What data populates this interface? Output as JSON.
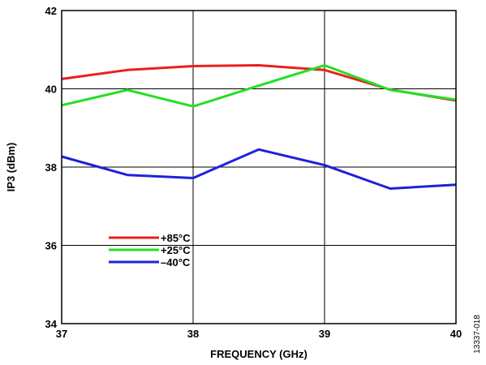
{
  "figure_id": "13337-018",
  "chart_data": {
    "type": "line",
    "title": "",
    "xlabel": "FREQUENCY (GHz)",
    "ylabel": "IP3 (dBm)",
    "xlim": [
      37,
      40
    ],
    "ylim": [
      34,
      42
    ],
    "x_ticks": [
      37,
      38,
      39,
      40
    ],
    "y_ticks": [
      34,
      36,
      38,
      40,
      42
    ],
    "grid": true,
    "legend_position": "lower-left",
    "series": [
      {
        "name": "+85°C",
        "color": "#e8201e",
        "x": [
          37,
          37.5,
          38,
          38.5,
          39,
          39.5,
          40
        ],
        "y": [
          40.25,
          40.48,
          40.58,
          40.6,
          40.48,
          39.98,
          39.7
        ]
      },
      {
        "name": "+25°C",
        "color": "#22e022",
        "x": [
          37,
          37.5,
          38,
          38.5,
          39,
          39.5,
          40
        ],
        "y": [
          39.58,
          39.97,
          39.55,
          40.08,
          40.6,
          39.97,
          39.72
        ]
      },
      {
        "name": "–40°C",
        "color": "#1e22d8",
        "x": [
          37,
          37.5,
          38,
          38.5,
          39,
          39.5,
          40
        ],
        "y": [
          38.27,
          37.8,
          37.72,
          38.45,
          38.05,
          37.45,
          37.55
        ]
      }
    ]
  }
}
